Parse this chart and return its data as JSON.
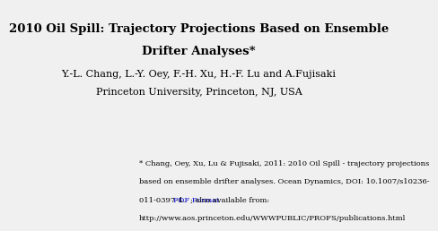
{
  "title_line1": "2010 Oil Spill: Trajectory Projections Based on Ensemble",
  "title_line2": "Drifter Analyses*",
  "author_line": "Y.-L. Chang, L.-Y. Oey, F.-H. Xu, H.-F. Lu and A.Fujisaki",
  "affil_line": "Princeton University, Princeton, NJ, USA",
  "footnote_line1": "* Chang, Oey, Xu, Lu & Fujisaki, 2011: 2010 Oil Spill - trajectory projections",
  "footnote_line2": "based on ensemble drifter analyses. Ocean Dynamics, DOI: 10.1007/s10236-",
  "footnote_line3a": "011-0397-4. ",
  "footnote_pdf": "PDF Format",
  "footnote_line3b": "; also available from:",
  "footnote_line4": "http://www.aos.princeton.edu/WWWPUBLIC/PROFS/publications.html",
  "bg_color": "#f0f0f0",
  "title_fontsize": 9.5,
  "author_fontsize": 8.0,
  "footnote_fontsize": 6.0,
  "link_color": "#0000cc",
  "text_color": "#000000"
}
